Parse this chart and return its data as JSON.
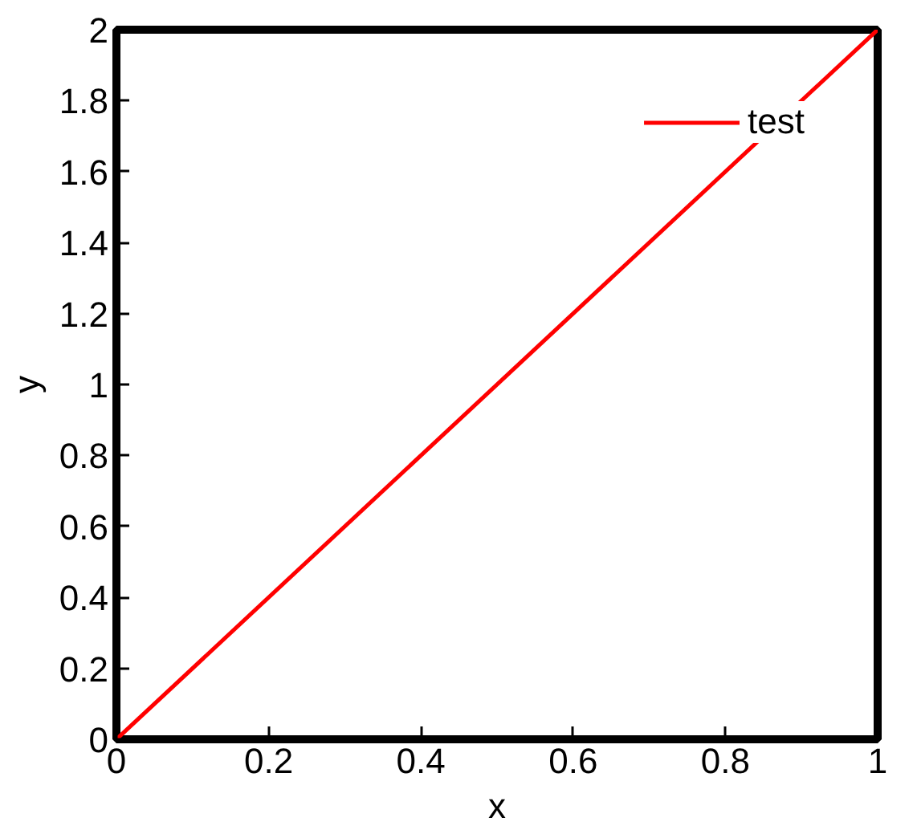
{
  "chart_data": {
    "type": "line",
    "xlabel": "x",
    "ylabel": "y",
    "x": [
      0,
      1
    ],
    "series": [
      {
        "name": "test",
        "color": "#ff0000",
        "values": [
          0,
          2
        ]
      }
    ],
    "xlim": [
      0,
      1
    ],
    "ylim": [
      0,
      2
    ],
    "xticks": [
      0,
      0.2,
      0.4,
      0.6,
      0.8,
      1
    ],
    "yticks": [
      0,
      0.2,
      0.4,
      0.6,
      0.8,
      1,
      1.2,
      1.4,
      1.6,
      1.8,
      2
    ],
    "grid": false,
    "legend": "top right",
    "line_style": "solid",
    "marker": "none"
  }
}
